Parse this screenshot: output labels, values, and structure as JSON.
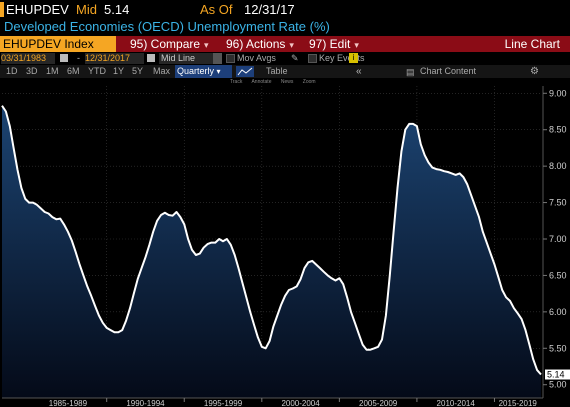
{
  "header": {
    "ticker": "EHUPDEV",
    "mid_label": "Mid",
    "mid_value": "5.14",
    "asof_label": "As Of",
    "asof_value": "12/31/17",
    "description": "Developed Economies (OECD) Unemployment Rate (%)"
  },
  "toolbar": {
    "index_label": "EHUPDEV Index",
    "compare": "95) Compare",
    "actions": "96) Actions",
    "edit": "97) Edit",
    "chart_type": "Line Chart"
  },
  "controls": {
    "start_date": "03/31/1983",
    "end_date": "12/31/2017",
    "mid_line": "Mid Line",
    "mov_avgs": "Mov Avgs",
    "key_events": "Key Events",
    "key_events_icon": "i",
    "periods": [
      "1D",
      "3D",
      "1M",
      "6M",
      "YTD",
      "1Y",
      "5Y",
      "Max"
    ],
    "frequency": "Quarterly",
    "table": "Table",
    "nav": "«",
    "chart_content": "Chart Content"
  },
  "mini_tools": [
    "Track",
    "Annotate",
    "News",
    "Zoom"
  ],
  "colors": {
    "line": "#ffffff",
    "fill_top": "#1c4472",
    "fill_bottom": "#040a18",
    "accent": "#f5a623",
    "title_blue": "#3bb3e6",
    "bar_red": "#8b0c16"
  },
  "chart_data": {
    "type": "area",
    "title": "Developed Economies (OECD) Unemployment Rate (%)",
    "ylim": [
      4.9,
      9.1
    ],
    "yticks": [
      "9.00",
      "8.50",
      "8.00",
      "7.50",
      "7.00",
      "6.50",
      "6.00",
      "5.50",
      "5.00"
    ],
    "xticks": [
      "1985-1989",
      "1990-1994",
      "1995-1999",
      "2000-2004",
      "2005-2009",
      "2010-2014",
      "2015-2019"
    ],
    "x_range": [
      "1983-03-31",
      "2017-12-31"
    ],
    "last_value_label": "5.14",
    "grid": true,
    "x": [
      1983.25,
      1983.5,
      1983.75,
      1984.0,
      1984.25,
      1984.5,
      1984.75,
      1985.0,
      1985.25,
      1985.5,
      1985.75,
      1986.0,
      1986.25,
      1986.5,
      1986.75,
      1987.0,
      1987.25,
      1987.5,
      1987.75,
      1988.0,
      1988.25,
      1988.5,
      1988.75,
      1989.0,
      1989.25,
      1989.5,
      1989.75,
      1990.0,
      1990.25,
      1990.5,
      1990.75,
      1991.0,
      1991.25,
      1991.5,
      1991.75,
      1992.0,
      1992.25,
      1992.5,
      1992.75,
      1993.0,
      1993.25,
      1993.5,
      1993.75,
      1994.0,
      1994.25,
      1994.5,
      1994.75,
      1995.0,
      1995.25,
      1995.5,
      1995.75,
      1996.0,
      1996.25,
      1996.5,
      1996.75,
      1997.0,
      1997.25,
      1997.5,
      1997.75,
      1998.0,
      1998.25,
      1998.5,
      1998.75,
      1999.0,
      1999.25,
      1999.5,
      1999.75,
      2000.0,
      2000.25,
      2000.5,
      2000.75,
      2001.0,
      2001.25,
      2001.5,
      2001.75,
      2002.0,
      2002.25,
      2002.5,
      2002.75,
      2003.0,
      2003.25,
      2003.5,
      2003.75,
      2004.0,
      2004.25,
      2004.5,
      2004.75,
      2005.0,
      2005.25,
      2005.5,
      2005.75,
      2006.0,
      2006.25,
      2006.5,
      2006.75,
      2007.0,
      2007.25,
      2007.5,
      2007.75,
      2008.0,
      2008.25,
      2008.5,
      2008.75,
      2009.0,
      2009.25,
      2009.5,
      2009.75,
      2010.0,
      2010.25,
      2010.5,
      2010.75,
      2011.0,
      2011.25,
      2011.5,
      2011.75,
      2012.0,
      2012.25,
      2012.5,
      2012.75,
      2013.0,
      2013.25,
      2013.5,
      2013.75,
      2014.0,
      2014.25,
      2014.5,
      2014.75,
      2015.0,
      2015.25,
      2015.5,
      2015.75,
      2016.0,
      2016.25,
      2016.5,
      2016.75,
      2017.0,
      2017.25,
      2017.5,
      2017.75,
      2018.0
    ],
    "y": [
      8.83,
      8.75,
      8.55,
      8.25,
      7.95,
      7.7,
      7.55,
      7.5,
      7.5,
      7.47,
      7.42,
      7.37,
      7.35,
      7.3,
      7.27,
      7.28,
      7.2,
      7.1,
      6.98,
      6.82,
      6.65,
      6.5,
      6.35,
      6.22,
      6.08,
      5.95,
      5.85,
      5.78,
      5.75,
      5.72,
      5.72,
      5.75,
      5.88,
      6.05,
      6.25,
      6.45,
      6.6,
      6.75,
      6.92,
      7.1,
      7.25,
      7.33,
      7.36,
      7.33,
      7.32,
      7.37,
      7.3,
      7.2,
      7.0,
      6.85,
      6.78,
      6.8,
      6.88,
      6.93,
      6.95,
      6.95,
      7.0,
      6.97,
      7.0,
      6.92,
      6.78,
      6.6,
      6.4,
      6.2,
      6.0,
      5.82,
      5.65,
      5.52,
      5.5,
      5.6,
      5.8,
      5.95,
      6.1,
      6.22,
      6.3,
      6.32,
      6.35,
      6.45,
      6.6,
      6.68,
      6.7,
      6.65,
      6.6,
      6.55,
      6.5,
      6.46,
      6.43,
      6.46,
      6.38,
      6.2,
      6.0,
      5.85,
      5.7,
      5.55,
      5.48,
      5.48,
      5.5,
      5.52,
      5.62,
      5.95,
      6.5,
      7.1,
      7.7,
      8.2,
      8.5,
      8.58,
      8.58,
      8.55,
      8.3,
      8.15,
      8.05,
      7.98,
      7.96,
      7.95,
      7.93,
      7.92,
      7.9,
      7.88,
      7.9,
      7.85,
      7.75,
      7.6,
      7.45,
      7.3,
      7.1,
      6.95,
      6.8,
      6.65,
      6.48,
      6.3,
      6.2,
      6.15,
      6.05,
      5.98,
      5.9,
      5.75,
      5.55,
      5.35,
      5.2,
      5.14
    ]
  }
}
